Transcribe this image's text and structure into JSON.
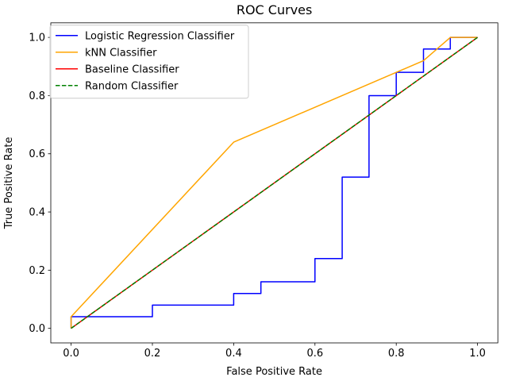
{
  "chart_data": {
    "type": "line",
    "title": "ROC Curves",
    "xlabel": "False Positive Rate",
    "ylabel": "True Positive Rate",
    "xlim": [
      -0.05,
      1.05
    ],
    "ylim": [
      -0.05,
      1.05
    ],
    "xticks": [
      0.0,
      0.2,
      0.4,
      0.6,
      0.8,
      1.0
    ],
    "yticks": [
      0.0,
      0.2,
      0.4,
      0.6,
      0.8,
      1.0
    ],
    "xtick_labels": [
      "0.0",
      "0.2",
      "0.4",
      "0.6",
      "0.8",
      "1.0"
    ],
    "ytick_labels": [
      "0.0",
      "0.2",
      "0.4",
      "0.6",
      "0.8",
      "1.0"
    ],
    "grid": false,
    "legend_position": "top-left",
    "series": [
      {
        "name": "Logistic Regression Classifier",
        "color": "#0000ff",
        "style": "solid",
        "x": [
          0.0,
          0.0,
          0.2,
          0.2,
          0.4,
          0.4,
          0.467,
          0.467,
          0.6,
          0.6,
          0.667,
          0.667,
          0.733,
          0.733,
          0.8,
          0.8,
          0.867,
          0.867,
          0.933,
          0.933,
          1.0
        ],
        "y": [
          0.0,
          0.04,
          0.04,
          0.08,
          0.08,
          0.12,
          0.12,
          0.16,
          0.16,
          0.24,
          0.24,
          0.52,
          0.52,
          0.8,
          0.8,
          0.88,
          0.88,
          0.96,
          0.96,
          1.0,
          1.0
        ]
      },
      {
        "name": "kNN Classifier",
        "color": "#ffa500",
        "style": "solid",
        "x": [
          0.0,
          0.0,
          0.4,
          0.867,
          0.933,
          1.0
        ],
        "y": [
          0.0,
          0.04,
          0.64,
          0.92,
          1.0,
          1.0
        ]
      },
      {
        "name": "Baseline Classifier",
        "color": "#ff0000",
        "style": "solid",
        "x": [
          0.0,
          1.0
        ],
        "y": [
          0.0,
          1.0
        ]
      },
      {
        "name": "Random Classifier",
        "color": "#008000",
        "style": "dashed",
        "x": [
          0.0,
          1.0
        ],
        "y": [
          0.0,
          1.0
        ]
      }
    ]
  }
}
